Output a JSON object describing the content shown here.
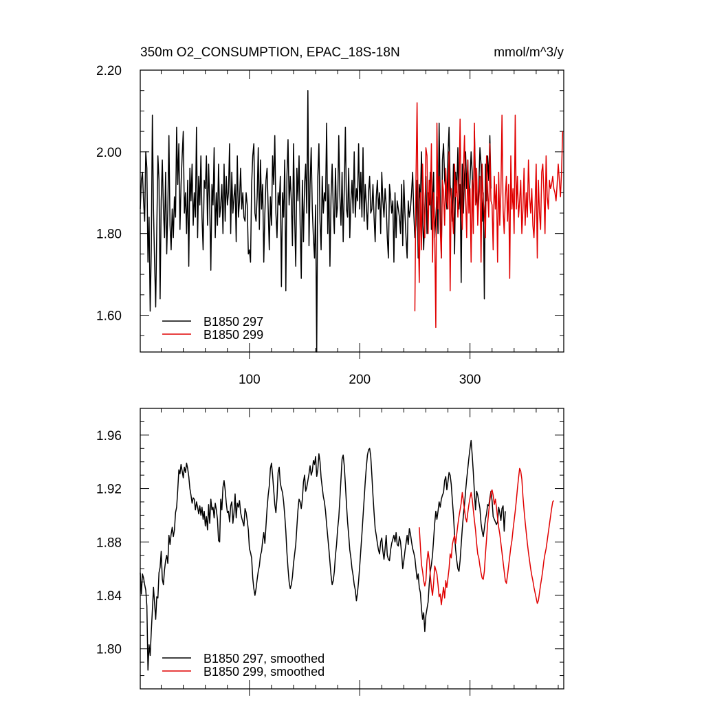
{
  "header": {
    "title": "350m O2_CONSUMPTION, EPAC_18S-18N",
    "units": "mmol/m^3/y"
  },
  "colors": {
    "series_a": "#000000",
    "series_b": "#e00000"
  },
  "chart_data": [
    {
      "type": "line",
      "title": "350m O2_CONSUMPTION, EPAC_18S-18N",
      "units": "mmol/m^3/y",
      "xlim": [
        1,
        385
      ],
      "ylim": [
        1.51,
        2.2
      ],
      "xticks": [
        100,
        200,
        300
      ],
      "xtick_labels": [
        "100",
        "200",
        "300"
      ],
      "yticks": [
        1.6,
        1.8,
        2.0,
        2.2
      ],
      "ytick_labels": [
        "1.60",
        "1.80",
        "2.00",
        "2.20"
      ],
      "legend_position": "bottom-left",
      "series": [
        {
          "name": "B1850 297",
          "color": "#000000",
          "x_start": 1,
          "values": [
            1.86,
            1.93,
            1.95,
            1.88,
            1.83,
            2.0,
            1.96,
            1.73,
            1.84,
            1.61,
            1.76,
            2.09,
            1.86,
            1.73,
            1.62,
            1.81,
            1.99,
            1.93,
            1.64,
            1.88,
            1.98,
            1.86,
            1.79,
            1.95,
            1.75,
            1.86,
            2.04,
            1.82,
            1.76,
            1.86,
            1.79,
            1.89,
            1.84,
            2.06,
            1.92,
            2.02,
            1.81,
            1.92,
            1.99,
            2.05,
            1.85,
            1.9,
            1.8,
            1.93,
            1.72,
            1.96,
            1.88,
            1.97,
            1.82,
            1.9,
            1.84,
            2.06,
            1.79,
            1.94,
            1.87,
            1.99,
            1.84,
            1.76,
            1.93,
            1.91,
            1.99,
            1.82,
            1.97,
            1.87,
            1.71,
            1.92,
            1.87,
            2.01,
            1.79,
            1.9,
            1.82,
            1.97,
            1.84,
            1.87,
            1.92,
            1.8,
            1.97,
            1.83,
            1.94,
            1.87,
            1.9,
            2.02,
            1.8,
            1.95,
            1.85,
            1.89,
            1.92,
            1.78,
            1.99,
            1.84,
            1.88,
            1.96,
            1.86,
            1.9,
            1.84,
            1.83,
            1.9,
            1.87,
            1.75,
            1.76,
            1.73,
            1.92,
            1.99,
            2.02,
            1.85,
            1.83,
            1.89,
            2.01,
            1.81,
            1.98,
            1.86,
            1.92,
            1.73,
            1.85,
            1.93,
            1.96,
            1.86,
            1.76,
            1.89,
            1.82,
            1.99,
            1.92,
            2.04,
            1.85,
            1.79,
            1.9,
            1.87,
            1.94,
            1.67,
            1.9,
            1.84,
            1.98,
            1.66,
            1.94,
            2.03,
            1.87,
            1.94,
            1.88,
            1.77,
            2.02,
            1.84,
            1.72,
            1.96,
            1.88,
            1.99,
            1.82,
            1.69,
            1.93,
            1.78,
            1.92,
            1.97,
            1.85,
            2.15,
            1.77,
            1.92,
            2.01,
            1.86,
            1.79,
            1.74,
            1.87,
            1.51,
            1.94,
            2.02,
            1.83,
            1.76,
            1.94,
            1.85,
            1.9,
            1.88,
            2.07,
            1.8,
            1.92,
            1.72,
            1.89,
            1.97,
            1.86,
            1.8,
            1.96,
            1.84,
            1.87,
            2.04,
            1.89,
            1.82,
            1.95,
            1.78,
            1.91,
            2.06,
            1.86,
            1.84,
            1.96,
            1.79,
            1.88,
            1.93,
            1.85,
            2.0,
            1.84,
            1.91,
            1.88,
            2.02,
            1.86,
            1.95,
            1.84,
            2.01,
            1.83,
            1.92,
            1.87,
            1.81,
            1.9,
            1.94,
            1.85,
            1.86,
            1.92,
            1.84,
            1.78,
            1.89,
            1.93,
            1.86,
            1.9,
            1.8,
            1.95,
            1.88,
            1.84,
            1.91,
            1.87,
            1.79,
            1.74,
            1.92,
            1.89,
            1.85,
            1.88,
            1.73,
            1.9,
            1.79,
            1.88,
            1.86,
            1.84,
            1.8,
            1.92,
            1.77,
            1.93,
            1.85,
            1.79,
            1.74,
            1.88,
            1.84,
            1.86,
            1.9,
            1.95,
            1.85,
            1.79,
            1.82,
            1.93,
            1.74,
            1.92,
            1.88,
            2.0,
            1.84,
            1.76,
            1.86,
            1.94,
            1.8,
            1.9,
            1.87,
            1.95,
            1.81,
            1.88,
            1.95,
            1.79,
            1.84,
            1.89,
            1.8,
            2.07,
            1.88,
            1.74,
            1.98,
            2.02,
            1.93,
            1.91,
            1.86,
            1.99,
            2.06,
            1.92,
            1.88,
            1.83,
            1.97,
            1.75,
            1.95,
            1.9,
            2.01,
            1.86,
            1.92,
            1.68,
            1.97,
            1.85,
            1.94,
            2.0,
            1.91,
            1.98,
            1.87,
            1.93,
            2.0,
            1.95,
            1.86,
            2.05,
            1.93,
            1.88,
            1.86,
            1.92,
            2.01,
            1.97,
            1.83,
            1.9,
            1.64,
            1.97,
            1.88,
            1.99,
            1.93,
            2.04,
            1.91
          ]
        },
        {
          "name": "B1850 299",
          "color": "#e00000",
          "x_start": 250,
          "values": [
            1.61,
            1.93,
            2.12,
            1.82,
            1.68,
            1.9,
            1.76,
            1.97,
            1.87,
            1.79,
            2.01,
            1.99,
            1.8,
            1.93,
            1.87,
            2.02,
            1.73,
            1.9,
            1.8,
            1.57,
            2.07,
            1.86,
            1.94,
            1.81,
            1.74,
            1.93,
            1.9,
            1.82,
            1.96,
            1.88,
            1.86,
            2.0,
            1.66,
            1.91,
            1.85,
            1.8,
            1.97,
            1.89,
            1.93,
            1.84,
            1.9,
            2.08,
            1.87,
            1.81,
            1.95,
            2.04,
            1.89,
            1.79,
            1.98,
            1.85,
            1.91,
            1.73,
            1.93,
            1.8,
            2.07,
            1.87,
            1.96,
            1.82,
            1.89,
            1.94,
            1.73,
            1.97,
            1.88,
            1.85,
            1.79,
            1.99,
            1.9,
            1.84,
            2.02,
            1.88,
            1.87,
            1.76,
            1.94,
            1.86,
            1.92,
            1.73,
            1.95,
            1.82,
            1.9,
            2.09,
            1.86,
            1.8,
            1.89,
            1.94,
            1.83,
            1.92,
            1.69,
            1.99,
            1.86,
            1.91,
            1.8,
            2.09,
            1.86,
            1.94,
            1.84,
            1.88,
            1.93,
            1.8,
            1.86,
            1.96,
            1.82,
            1.9,
            1.84,
            1.98,
            1.89,
            1.85,
            1.91,
            1.82,
            1.79,
            1.87,
            1.97,
            1.74,
            1.93,
            1.85,
            1.81,
            1.95,
            1.97,
            1.9,
            1.8,
            1.99,
            1.89,
            1.86,
            1.93,
            1.91,
            1.92,
            1.94,
            1.91,
            1.9,
            1.88,
            1.92,
            1.97,
            1.93,
            1.89,
            1.95,
            2.05
          ]
        }
      ]
    },
    {
      "type": "line",
      "title": "",
      "xlim": [
        1,
        385
      ],
      "ylim": [
        1.77,
        1.98
      ],
      "yticks": [
        1.8,
        1.84,
        1.88,
        1.92,
        1.96
      ],
      "ytick_labels": [
        "1.80",
        "1.84",
        "1.88",
        "1.92",
        "1.96"
      ],
      "legend_position": "bottom-left",
      "series": [
        {
          "name": "B1850 297, smoothed",
          "color": "#000000",
          "x_start": 1,
          "values": [
            1.857,
            1.841,
            1.856,
            1.853,
            1.848,
            1.844,
            1.832,
            1.784,
            1.803,
            1.795,
            1.813,
            1.829,
            1.846,
            1.834,
            1.822,
            1.839,
            1.838,
            1.857,
            1.861,
            1.873,
            1.852,
            1.848,
            1.859,
            1.866,
            1.87,
            1.864,
            1.885,
            1.878,
            1.886,
            1.891,
            1.884,
            1.889,
            1.902,
            1.906,
            1.919,
            1.934,
            1.931,
            1.938,
            1.933,
            1.928,
            1.936,
            1.932,
            1.939,
            1.935,
            1.929,
            1.92,
            1.915,
            1.909,
            1.913,
            1.912,
            1.904,
            1.91,
            1.906,
            1.901,
            1.907,
            1.9,
            1.906,
            1.897,
            1.903,
            1.892,
            1.899,
            1.889,
            1.908,
            1.894,
            1.912,
            1.904,
            1.906,
            1.898,
            1.909,
            1.904,
            1.897,
            1.881,
            1.88,
            1.912,
            1.904,
            1.921,
            1.926,
            1.919,
            1.909,
            1.902,
            1.903,
            1.895,
            1.907,
            1.91,
            1.894,
            1.902,
            1.916,
            1.898,
            1.909,
            1.906,
            1.911,
            1.902,
            1.898,
            1.895,
            1.892,
            1.905,
            1.902,
            1.896,
            1.889,
            1.875,
            1.872,
            1.868,
            1.853,
            1.845,
            1.84,
            1.845,
            1.852,
            1.858,
            1.862,
            1.87,
            1.873,
            1.881,
            1.887,
            1.879,
            1.892,
            1.905,
            1.915,
            1.922,
            1.935,
            1.939,
            1.93,
            1.919,
            1.908,
            1.902,
            1.913,
            1.932,
            1.936,
            1.924,
            1.92,
            1.917,
            1.91,
            1.9,
            1.888,
            1.872,
            1.86,
            1.85,
            1.845,
            1.848,
            1.854,
            1.864,
            1.871,
            1.878,
            1.891,
            1.904,
            1.912,
            1.91,
            1.905,
            1.912,
            1.925,
            1.93,
            1.918,
            1.921,
            1.926,
            1.931,
            1.937,
            1.93,
            1.933,
            1.941,
            1.938,
            1.944,
            1.929,
            1.934,
            1.946,
            1.94,
            1.928,
            1.921,
            1.914,
            1.91,
            1.903,
            1.893,
            1.884,
            1.875,
            1.865,
            1.855,
            1.848,
            1.851,
            1.858,
            1.87,
            1.878,
            1.89,
            1.898,
            1.912,
            1.927,
            1.942,
            1.945,
            1.937,
            1.923,
            1.908,
            1.895,
            1.885,
            1.874,
            1.868,
            1.86,
            1.855,
            1.848,
            1.844,
            1.836,
            1.842,
            1.851,
            1.862,
            1.874,
            1.886,
            1.899,
            1.912,
            1.925,
            1.936,
            1.945,
            1.949,
            1.95,
            1.944,
            1.93,
            1.915,
            1.902,
            1.89,
            1.885,
            1.879,
            1.874,
            1.871,
            1.88,
            1.883,
            1.873,
            1.867,
            1.875,
            1.885,
            1.87,
            1.867,
            1.866,
            1.874,
            1.879,
            1.882,
            1.885,
            1.88,
            1.887,
            1.878,
            1.877,
            1.884,
            1.88,
            1.871,
            1.86,
            1.866,
            1.873,
            1.879,
            1.885,
            1.878,
            1.89,
            1.886,
            1.88,
            1.875,
            1.872,
            1.868,
            1.86,
            1.852,
            1.856,
            1.846,
            1.842,
            1.83,
            1.822,
            1.827,
            1.813,
            1.825,
            1.83,
            1.835,
            1.848,
            1.858,
            1.863,
            1.87,
            1.882,
            1.894,
            1.903,
            1.897,
            1.903,
            1.91,
            1.906,
            1.912,
            1.915,
            1.917,
            1.926,
            1.929,
            1.919,
            1.925,
            1.932,
            1.93,
            1.923,
            1.911,
            1.9,
            1.885,
            1.874,
            1.866,
            1.86,
            1.858,
            1.866,
            1.878,
            1.89,
            1.9,
            1.908,
            1.918,
            1.927,
            1.935,
            1.943,
            1.95,
            1.956,
            1.945,
            1.932,
            1.917,
            1.904,
            1.918,
            1.915,
            1.91,
            1.905,
            1.894,
            1.888,
            1.884,
            1.89,
            1.897,
            1.901,
            1.908,
            1.907,
            1.913,
            1.918,
            1.911,
            1.899,
            1.897,
            1.895,
            1.893,
            1.895,
            1.906,
            1.902,
            1.896,
            1.905,
            1.907,
            1.888,
            1.903
          ]
        },
        {
          "name": "B1850 299, smoothed",
          "color": "#e00000",
          "x_start": 254,
          "values": [
            1.891,
            1.877,
            1.863,
            1.858,
            1.851,
            1.847,
            1.851,
            1.866,
            1.873,
            1.867,
            1.855,
            1.846,
            1.84,
            1.849,
            1.862,
            1.859,
            1.856,
            1.848,
            1.839,
            1.841,
            1.833,
            1.84,
            1.846,
            1.838,
            1.851,
            1.846,
            1.853,
            1.86,
            1.871,
            1.868,
            1.878,
            1.882,
            1.885,
            1.879,
            1.886,
            1.893,
            1.899,
            1.904,
            1.909,
            1.917,
            1.911,
            1.904,
            1.898,
            1.895,
            1.902,
            1.908,
            1.913,
            1.917,
            1.912,
            1.904,
            1.896,
            1.889,
            1.879,
            1.871,
            1.868,
            1.862,
            1.857,
            1.853,
            1.852,
            1.858,
            1.871,
            1.882,
            1.894,
            1.903,
            1.911,
            1.917,
            1.919,
            1.915,
            1.908,
            1.912,
            1.906,
            1.898,
            1.891,
            1.886,
            1.879,
            1.872,
            1.865,
            1.858,
            1.851,
            1.849,
            1.855,
            1.862,
            1.869,
            1.876,
            1.881,
            1.889,
            1.896,
            1.903,
            1.911,
            1.92,
            1.928,
            1.935,
            1.933,
            1.927,
            1.914,
            1.904,
            1.895,
            1.887,
            1.879,
            1.872,
            1.866,
            1.86,
            1.855,
            1.851,
            1.846,
            1.842,
            1.838,
            1.834,
            1.836,
            1.842,
            1.848,
            1.853,
            1.859,
            1.866,
            1.871,
            1.875,
            1.881,
            1.887,
            1.893,
            1.899,
            1.905,
            1.91,
            1.911
          ]
        }
      ]
    }
  ]
}
